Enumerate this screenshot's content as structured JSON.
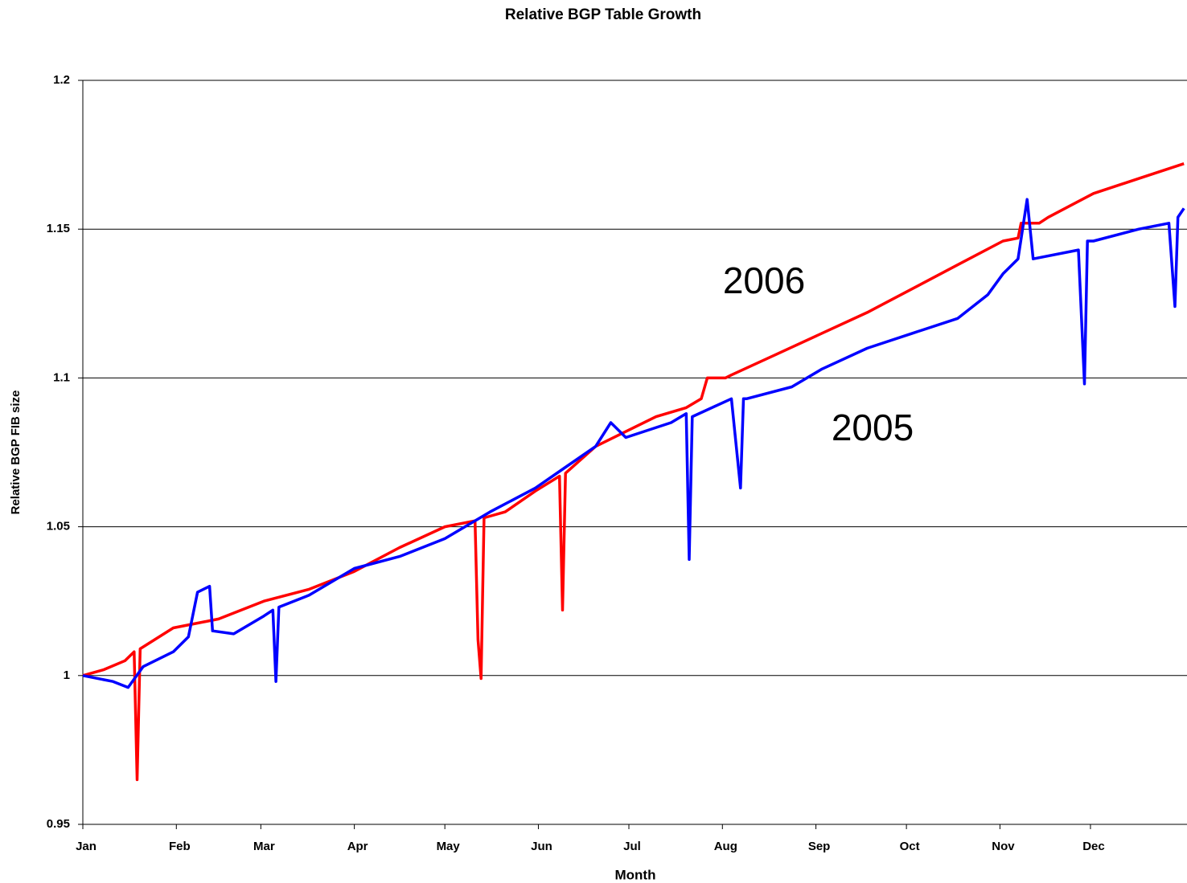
{
  "chart_data": {
    "type": "line",
    "title": "Relative BGP Table Growth",
    "x_label": "Month",
    "y_label": "Relative BGP FIB size",
    "xlim": [
      0,
      366
    ],
    "ylim": [
      0.95,
      1.2
    ],
    "xticks": [
      {
        "value": 0,
        "label": "Jan"
      },
      {
        "value": 31,
        "label": "Feb"
      },
      {
        "value": 59,
        "label": "Mar"
      },
      {
        "value": 90,
        "label": "Apr"
      },
      {
        "value": 120,
        "label": "May"
      },
      {
        "value": 151,
        "label": "Jun"
      },
      {
        "value": 181,
        "label": "Jul"
      },
      {
        "value": 212,
        "label": "Aug"
      },
      {
        "value": 243,
        "label": "Sep"
      },
      {
        "value": 273,
        "label": "Oct"
      },
      {
        "value": 304,
        "label": "Nov"
      },
      {
        "value": 334,
        "label": "Dec"
      }
    ],
    "yticks": [
      0.95,
      1,
      1.05,
      1.1,
      1.15,
      1.2
    ],
    "grid": true,
    "annotations": [
      {
        "text": "2006",
        "color": "#ee6633"
      },
      {
        "text": "2005",
        "color": "#3333cc"
      }
    ],
    "series": [
      {
        "name": "2006",
        "color": "#ff0000",
        "x": [
          0,
          7,
          14,
          17,
          18,
          19,
          30,
          45,
          60,
          75,
          90,
          105,
          120,
          130,
          131,
          132,
          133,
          140,
          150,
          158,
          159,
          160,
          170,
          180,
          190,
          200,
          205,
          207,
          213,
          215,
          230,
          245,
          260,
          275,
          290,
          305,
          310,
          311,
          317,
          320,
          335,
          350,
          365
        ],
        "values": [
          1.0,
          1.002,
          1.005,
          1.008,
          0.965,
          1.009,
          1.016,
          1.019,
          1.025,
          1.029,
          1.035,
          1.043,
          1.05,
          1.052,
          1.012,
          0.999,
          1.053,
          1.055,
          1.062,
          1.067,
          1.022,
          1.068,
          1.077,
          1.082,
          1.087,
          1.09,
          1.093,
          1.1,
          1.1,
          1.101,
          1.108,
          1.115,
          1.122,
          1.13,
          1.138,
          1.146,
          1.147,
          1.152,
          1.152,
          1.154,
          1.162,
          1.167,
          1.172
        ]
      },
      {
        "name": "2005",
        "color": "#0000ff",
        "x": [
          0,
          10,
          15,
          20,
          30,
          35,
          38,
          42,
          43,
          50,
          60,
          63,
          64,
          65,
          75,
          90,
          105,
          120,
          135,
          150,
          160,
          170,
          175,
          180,
          195,
          200,
          201,
          202,
          215,
          218,
          219,
          220,
          235,
          245,
          260,
          275,
          290,
          300,
          305,
          310,
          313,
          315,
          330,
          332,
          333,
          335,
          350,
          360,
          362,
          363,
          365
        ],
        "values": [
          1.0,
          0.998,
          0.996,
          1.003,
          1.008,
          1.013,
          1.028,
          1.03,
          1.015,
          1.014,
          1.02,
          1.022,
          0.998,
          1.023,
          1.027,
          1.036,
          1.04,
          1.046,
          1.055,
          1.063,
          1.07,
          1.077,
          1.085,
          1.08,
          1.085,
          1.088,
          1.039,
          1.087,
          1.093,
          1.063,
          1.093,
          1.093,
          1.097,
          1.103,
          1.11,
          1.115,
          1.12,
          1.128,
          1.135,
          1.14,
          1.16,
          1.14,
          1.143,
          1.098,
          1.146,
          1.146,
          1.15,
          1.152,
          1.124,
          1.154,
          1.157
        ]
      }
    ]
  }
}
